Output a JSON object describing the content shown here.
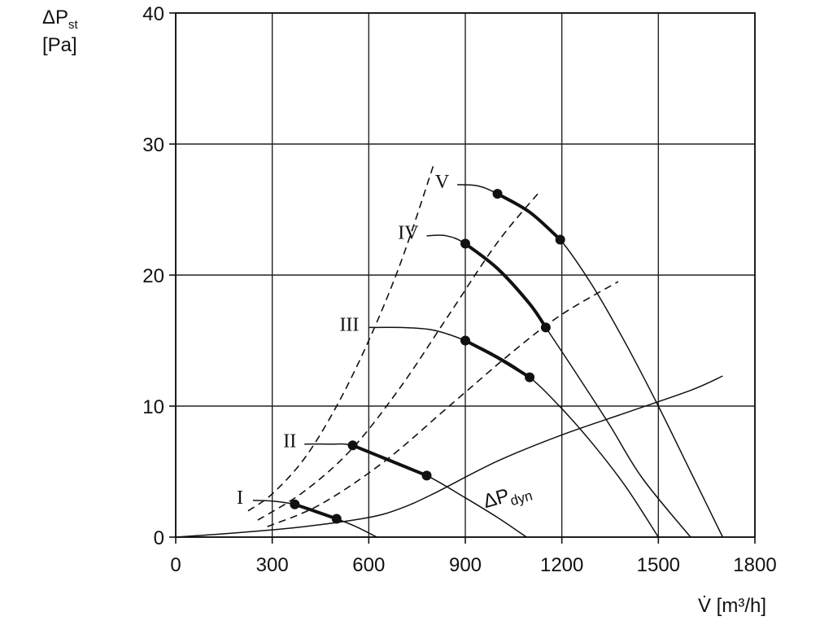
{
  "chart_data": {
    "type": "line",
    "xlabel": "V̇ [m³/h]",
    "ylabel_main": "ΔP",
    "ylabel_sub": "st",
    "ylabel_unit": "[Pa]",
    "xlim": [
      0,
      1800
    ],
    "ylim": [
      0,
      40
    ],
    "x_ticks": [
      0,
      300,
      600,
      900,
      1200,
      1500,
      1800
    ],
    "y_ticks": [
      0,
      10,
      20,
      30,
      40
    ],
    "grid": true,
    "series": [
      {
        "name": "I",
        "label_at": [
          220,
          2.8
        ],
        "points": [
          [
            240,
            2.8
          ],
          [
            300,
            2.75
          ],
          [
            370,
            2.5
          ],
          [
            440,
            1.9
          ],
          [
            500,
            1.4
          ],
          [
            560,
            0.8
          ],
          [
            625,
            0
          ]
        ],
        "bold": [
          [
            370,
            2.5
          ],
          [
            430,
            2.0
          ],
          [
            500,
            1.4
          ]
        ],
        "markers": [
          [
            370,
            2.5
          ],
          [
            500,
            1.4
          ]
        ]
      },
      {
        "name": "II",
        "label_at": [
          385,
          7.1
        ],
        "points": [
          [
            400,
            7.1
          ],
          [
            480,
            7.1
          ],
          [
            550,
            7.0
          ],
          [
            650,
            6.0
          ],
          [
            780,
            4.7
          ],
          [
            900,
            3.0
          ],
          [
            1000,
            1.5
          ],
          [
            1090,
            0
          ]
        ],
        "bold": [
          [
            550,
            7.0
          ],
          [
            660,
            5.9
          ],
          [
            780,
            4.7
          ]
        ],
        "markers": [
          [
            550,
            7.0
          ],
          [
            780,
            4.7
          ]
        ]
      },
      {
        "name": "III",
        "label_at": [
          580,
          16.0
        ],
        "points": [
          [
            600,
            16.0
          ],
          [
            700,
            16.0
          ],
          [
            800,
            15.8
          ],
          [
            900,
            15.0
          ],
          [
            1000,
            13.8
          ],
          [
            1100,
            12.2
          ],
          [
            1200,
            9.8
          ],
          [
            1300,
            7.0
          ],
          [
            1400,
            3.8
          ],
          [
            1500,
            0
          ]
        ],
        "bold": [
          [
            900,
            15.0
          ],
          [
            1000,
            13.7
          ],
          [
            1100,
            12.2
          ]
        ],
        "markers": [
          [
            900,
            15.0
          ],
          [
            1100,
            12.2
          ]
        ]
      },
      {
        "name": "IV",
        "label_at": [
          765,
          23.0
        ],
        "points": [
          [
            780,
            23.0
          ],
          [
            840,
            23.0
          ],
          [
            900,
            22.4
          ],
          [
            1000,
            20.5
          ],
          [
            1100,
            17.8
          ],
          [
            1150,
            16.0
          ],
          [
            1250,
            12.3
          ],
          [
            1350,
            8.5
          ],
          [
            1450,
            4.5
          ],
          [
            1600,
            0
          ]
        ],
        "bold": [
          [
            900,
            22.4
          ],
          [
            1000,
            20.5
          ],
          [
            1100,
            17.8
          ],
          [
            1150,
            16.0
          ]
        ],
        "markers": [
          [
            900,
            22.4
          ],
          [
            1150,
            16.0
          ]
        ]
      },
      {
        "name": "V",
        "label_at": [
          860,
          26.9
        ],
        "points": [
          [
            875,
            26.9
          ],
          [
            940,
            26.8
          ],
          [
            1000,
            26.2
          ],
          [
            1100,
            24.8
          ],
          [
            1195,
            22.7
          ],
          [
            1300,
            19.0
          ],
          [
            1400,
            14.7
          ],
          [
            1500,
            10.0
          ],
          [
            1600,
            5.0
          ],
          [
            1700,
            0
          ]
        ],
        "bold": [
          [
            1000,
            26.2
          ],
          [
            1100,
            24.8
          ],
          [
            1195,
            22.7
          ]
        ],
        "markers": [
          [
            1000,
            26.2
          ],
          [
            1195,
            22.7
          ]
        ]
      }
    ],
    "dashed_lines": [
      [
        [
          225,
          2.0
        ],
        [
          300,
          3.3
        ],
        [
          400,
          6.0
        ],
        [
          500,
          10.0
        ],
        [
          600,
          15.0
        ],
        [
          700,
          21.0
        ],
        [
          800,
          28.3
        ]
      ],
      [
        [
          255,
          1.3
        ],
        [
          400,
          3.5
        ],
        [
          550,
          6.8
        ],
        [
          700,
          11.5
        ],
        [
          850,
          17.0
        ],
        [
          1000,
          22.5
        ],
        [
          1125,
          26.2
        ]
      ],
      [
        [
          285,
          0.8
        ],
        [
          450,
          2.5
        ],
        [
          650,
          5.8
        ],
        [
          850,
          10.0
        ],
        [
          1050,
          14.2
        ],
        [
          1200,
          17.0
        ],
        [
          1375,
          19.5
        ]
      ]
    ],
    "dyn_curve": {
      "name_main": "ΔP",
      "name_sub": "dyn",
      "label_at": [
        1030,
        3.2
      ],
      "points": [
        [
          0,
          0
        ],
        [
          200,
          0.35
        ],
        [
          400,
          0.8
        ],
        [
          600,
          1.5
        ],
        [
          700,
          2.2
        ],
        [
          800,
          3.3
        ],
        [
          1000,
          5.8
        ],
        [
          1200,
          7.8
        ],
        [
          1400,
          9.5
        ],
        [
          1600,
          11.2
        ],
        [
          1700,
          12.3
        ]
      ]
    }
  }
}
